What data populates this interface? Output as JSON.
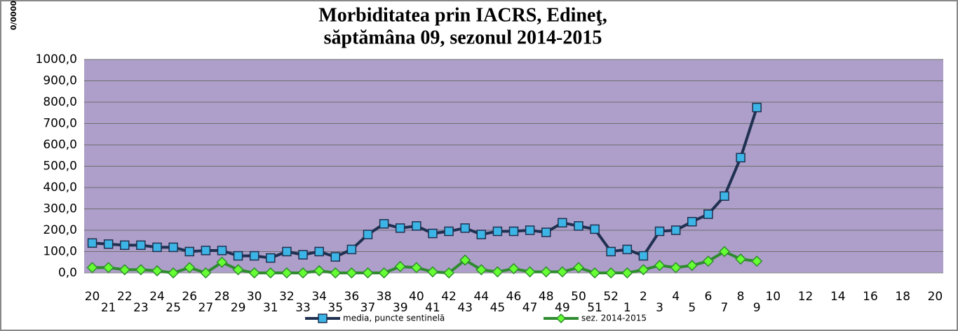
{
  "chart_data": {
    "type": "line",
    "title": "Morbiditatea prin IACRS, Edineţ,",
    "subtitle": "săptămâna 09, sezonul 2014-2015",
    "y_label": "0/0000",
    "categories": [
      "20",
      "21",
      "22",
      "23",
      "24",
      "25",
      "26",
      "27",
      "28",
      "29",
      "30",
      "31",
      "32",
      "33",
      "34",
      "35",
      "36",
      "37",
      "38",
      "39",
      "40",
      "41",
      "42",
      "43",
      "44",
      "45",
      "46",
      "47",
      "48",
      "49",
      "50",
      "51",
      "52",
      "1",
      "2",
      "3",
      "4",
      "5",
      "6",
      "7",
      "8",
      "9",
      "10",
      null,
      "12",
      null,
      "14",
      null,
      "16",
      null,
      "18",
      null,
      "20"
    ],
    "series": [
      {
        "name": "media, puncte sentinelă",
        "color": "#1f3050",
        "marker_color": "#3cb4e6",
        "values": [
          140,
          135,
          130,
          130,
          120,
          120,
          100,
          105,
          105,
          80,
          80,
          70,
          100,
          85,
          100,
          75,
          110,
          180,
          230,
          210,
          220,
          185,
          195,
          210,
          180,
          195,
          195,
          200,
          190,
          235,
          220,
          205,
          100,
          110,
          80,
          195,
          200,
          240,
          275,
          360,
          540,
          775,
          null,
          null,
          null,
          null,
          null,
          null,
          null,
          null,
          null,
          null,
          null
        ]
      },
      {
        "name": "sez. 2014-2015",
        "color": "#2e8b2e",
        "marker_color": "#66ff33",
        "values": [
          25,
          25,
          15,
          15,
          10,
          0,
          25,
          0,
          50,
          15,
          0,
          0,
          0,
          0,
          10,
          0,
          0,
          0,
          0,
          30,
          25,
          5,
          0,
          60,
          15,
          5,
          20,
          5,
          5,
          5,
          25,
          0,
          0,
          0,
          15,
          35,
          25,
          35,
          55,
          100,
          65,
          55,
          null,
          null,
          null,
          null,
          null,
          null,
          null,
          null,
          null,
          null,
          null
        ]
      }
    ],
    "ylim": [
      0,
      1000
    ],
    "yticks": [
      {
        "value": 0,
        "label": "0,0"
      },
      {
        "value": 100,
        "label": "100,0"
      },
      {
        "value": 200,
        "label": "200,0"
      },
      {
        "value": 300,
        "label": "300,0"
      },
      {
        "value": 400,
        "label": "400,0"
      },
      {
        "value": 500,
        "label": "500,0"
      },
      {
        "value": 600,
        "label": "600,0"
      },
      {
        "value": 700,
        "label": "700,0"
      },
      {
        "value": 800,
        "label": "800,0"
      },
      {
        "value": 900,
        "label": "900,0"
      },
      {
        "value": 1000,
        "label": "1000,0"
      }
    ],
    "grid": true,
    "plot_background": "#ad9fc9",
    "legend": "bottom"
  }
}
